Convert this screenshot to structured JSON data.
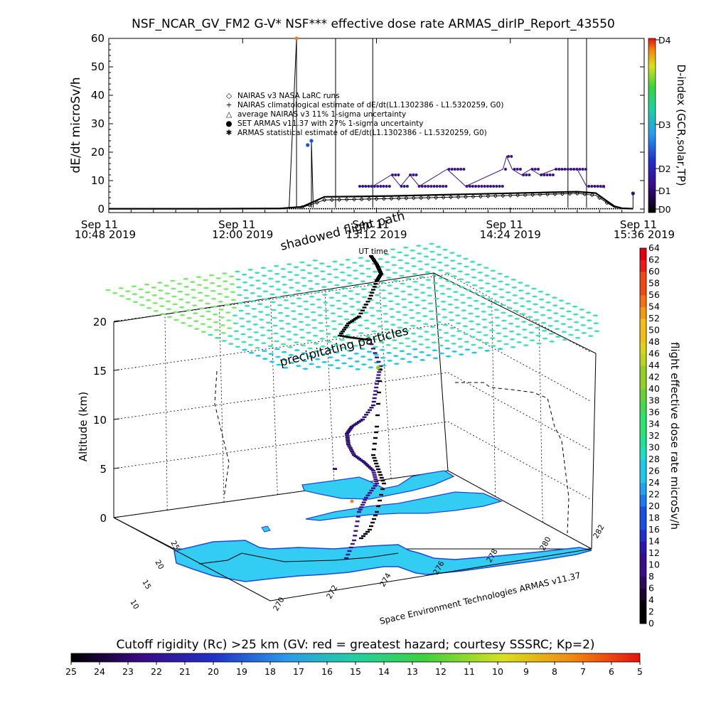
{
  "title": "NSF_NCAR_GV_FM2 G-V* NSF*** effective dose rate ARMAS_dirIP_Report_43550",
  "chart_data": [
    {
      "type": "line",
      "title": "NSF_NCAR_GV_FM2 G-V* NSF*** effective dose rate ARMAS_dirIP_Report_43550",
      "ylabel": "dE/dt microSv/h",
      "ylim": [
        0,
        60
      ],
      "yticks": [
        "0",
        "10",
        "20",
        "30",
        "40",
        "50",
        "60"
      ],
      "xlim": [
        "10:48",
        "15:36"
      ],
      "xtick_dates": [
        "Sep 11",
        "Sep 11",
        "Sep 11",
        "Sep 11",
        "Sep 11"
      ],
      "xtick_times": [
        "10:48 2019",
        "12:00 2019",
        "13:12 2019",
        "14:24 2019",
        "15:36 2019"
      ],
      "xlabel": "UT time",
      "grid": false,
      "legend_position": "upper-middle",
      "legend": [
        {
          "symbol": "◇",
          "label": "NAIRAS v3 NASA LaRC runs",
          "color": "#000000"
        },
        {
          "symbol": "+",
          "label": "NAIRAS climatological estimate of dE/dt(L1.1302386 - L1.5320259, G0)",
          "color": "#000000"
        },
        {
          "symbol": "△",
          "label": "average NAIRAS v3 11% 1-sigma uncertainty",
          "color": "#000000"
        },
        {
          "symbol": "●",
          "label": "SET ARMAS v11.37 with 27% 1-sigma uncertainty",
          "color": "#1a2bd8"
        },
        {
          "symbol": "✱",
          "label": "ARMAS statistical estimate of dE/dt(L1.1302386 - L1.5320259, G0)",
          "color": "#000000"
        }
      ],
      "series": [
        {
          "label": "ARMAS statistical estimate of dE/dt(L1.1302386 - L1.5320259, G0)",
          "x_minutes": [
            648,
            700,
            740,
            752,
            758,
            764,
            780,
            800,
            840,
            880,
            900,
            910,
            916,
            920,
            924,
            930
          ],
          "y": [
            0.1,
            0.1,
            0.2,
            0.8,
            2.5,
            4.3,
            4.4,
            4.6,
            5.2,
            5.8,
            6.1,
            5.6,
            2.8,
            1.0,
            0.3,
            0.1
          ]
        },
        {
          "label": "NAIRAS climatological estimate of dE/dt(L1.1302386 - L1.5320259, G0)",
          "x_minutes": [
            648,
            740,
            752,
            758,
            764,
            780,
            800,
            840,
            880,
            900,
            910,
            916,
            920,
            930
          ],
          "y": [
            0.1,
            0.2,
            0.6,
            1.8,
            3.2,
            3.4,
            3.7,
            4.3,
            5.1,
            5.5,
            4.8,
            2.2,
            0.6,
            0.1
          ]
        },
        {
          "label": "SET ARMAS v11.37 with 27% 1-sigma uncertainty",
          "x_minutes": [
            749,
            755,
            757,
            783,
            790,
            800,
            805,
            810,
            815,
            830,
            840,
            860,
            862,
            865,
            870,
            875,
            880,
            888,
            895,
            900,
            905,
            910,
            915
          ],
          "y": [
            60,
            22.5,
            24,
            8,
            8,
            12,
            8,
            12,
            8,
            14,
            8,
            14,
            18.5,
            14,
            12,
            14,
            12,
            14,
            14,
            14,
            8,
            8,
            7.5
          ]
        },
        {
          "label": "D-index (GCR,solar,TP)",
          "x_minutes": [
            749,
            757,
            770,
            790,
            895,
            905,
            930
          ],
          "y": [
            60,
            60,
            60,
            60,
            60,
            60,
            5.5
          ]
        }
      ],
      "dindex_colorbar": {
        "label": "D-index (GCR,solar,TP)",
        "ticks": [
          "D0",
          "D1",
          "D2",
          "D3",
          "D4"
        ]
      }
    },
    {
      "type": "scatter",
      "title": "",
      "zlabel": "Altitude (km)",
      "zticks": [
        "0",
        "5",
        "10",
        "15",
        "20"
      ],
      "x_ticks": [
        "270",
        "272",
        "274",
        "276",
        "278",
        "280",
        "282"
      ],
      "y_ticks": [
        "10",
        "15",
        "20",
        "25"
      ],
      "annotations": [
        "shadowed flight path",
        "precipitating particles"
      ],
      "credit": "Space Environment Technologies ARMAS v11.37",
      "dose_colorbar": {
        "label": "flight effective dose rate microSv/h",
        "ticks": [
          "0",
          "2",
          "4",
          "6",
          "8",
          "10",
          "12",
          "14",
          "16",
          "18",
          "20",
          "22",
          "24",
          "26",
          "28",
          "30",
          "32",
          "34",
          "36",
          "38",
          "40",
          "42",
          "44",
          "46",
          "48",
          "50",
          "52",
          "54",
          "56",
          "58",
          "60",
          "62",
          "64"
        ]
      }
    }
  ],
  "cutoff_colorbar": {
    "label": "Cutoff rigidity (Rc) >25 km (GV: red = greatest hazard; courtesy SSSRC; Kp=2)",
    "ticks": [
      "25",
      "24",
      "23",
      "22",
      "21",
      "20",
      "19",
      "18",
      "17",
      "16",
      "15",
      "14",
      "13",
      "12",
      "11",
      "10",
      "9",
      "8",
      "7",
      "6",
      "5"
    ]
  },
  "colors": {
    "particles": "#46e0a8",
    "region_fill": "#33ccf2",
    "region_edge": "#1e48d8",
    "points": "#3a1585",
    "orange_point": "#f08018"
  }
}
